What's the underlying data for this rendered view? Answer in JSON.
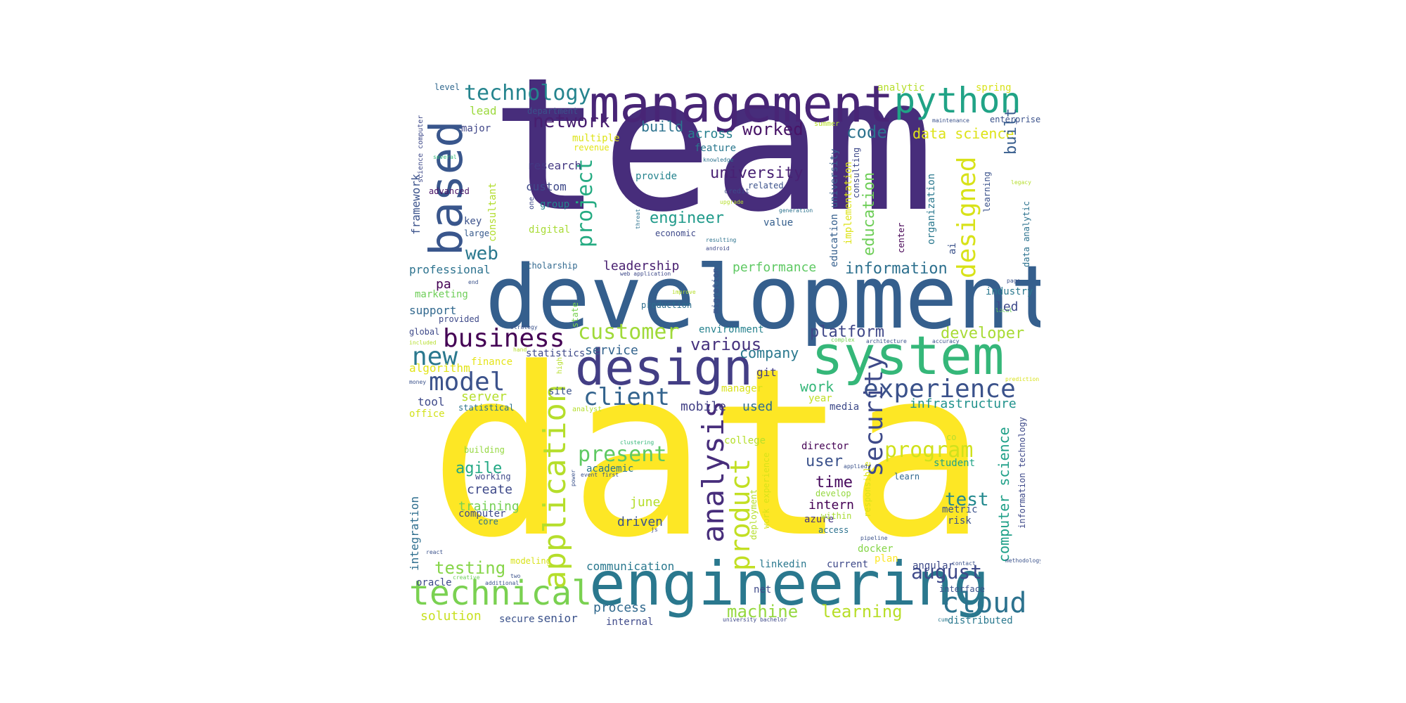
{
  "palette": {
    "p0": "#440154",
    "p1": "#482878",
    "p2": "#3e4989",
    "p3": "#31688e",
    "p4": "#26828e",
    "p5": "#1f9e89",
    "p6": "#35b779",
    "p7": "#6ece58",
    "p8": "#b5de2b",
    "p9": "#fde725"
  },
  "words": [
    {
      "text": "data",
      "color": "#fde725"
    },
    {
      "text": "team",
      "color": "#472d7b"
    },
    {
      "text": "development",
      "color": "#355f8d"
    },
    {
      "text": "engineering",
      "color": "#2a788e"
    },
    {
      "text": "management",
      "color": "#482576"
    },
    {
      "text": "system",
      "color": "#35b779"
    },
    {
      "text": "design",
      "color": "#433e85"
    },
    {
      "text": "based",
      "color": "#39568c"
    },
    {
      "text": "technical",
      "color": "#7ad151"
    },
    {
      "text": "python",
      "color": "#20a386"
    },
    {
      "text": "application",
      "color": "#b5de2b"
    },
    {
      "text": "experience",
      "color": "#3b528b"
    },
    {
      "text": "analysis",
      "color": "#472d7b"
    },
    {
      "text": "security",
      "color": "#3e4a89"
    },
    {
      "text": "product",
      "color": "#c2df23"
    },
    {
      "text": "designed",
      "color": "#d8e219"
    },
    {
      "text": "cloud",
      "color": "#2c728e"
    },
    {
      "text": "business",
      "color": "#440154"
    },
    {
      "text": "model",
      "color": "#3b528b"
    },
    {
      "text": "client",
      "color": "#33638d"
    },
    {
      "text": "technology",
      "color": "#25848e"
    },
    {
      "text": "new",
      "color": "#2a788e"
    },
    {
      "text": "customer",
      "color": "#a0da39"
    },
    {
      "text": "project",
      "color": "#25ab82"
    },
    {
      "text": "present",
      "color": "#5ec962"
    },
    {
      "text": "program",
      "color": "#d0e11c"
    },
    {
      "text": "august",
      "color": "#3e4989"
    },
    {
      "text": "machine",
      "color": "#95d840"
    },
    {
      "text": "learning",
      "color": "#b8de29"
    },
    {
      "text": "testing",
      "color": "#86d549"
    },
    {
      "text": "network",
      "color": "#481f70"
    },
    {
      "text": "test",
      "color": "#23898e"
    },
    {
      "text": "worked",
      "color": "#481467"
    },
    {
      "text": "web",
      "color": "#2a788e"
    },
    {
      "text": "various",
      "color": "#46327e"
    },
    {
      "text": "platform",
      "color": "#3f4788"
    },
    {
      "text": "information",
      "color": "#2d708e"
    },
    {
      "text": "developer",
      "color": "#a8db34"
    },
    {
      "text": "engineer",
      "color": "#1f9a8a"
    },
    {
      "text": "university",
      "color": "#482173"
    },
    {
      "text": "code",
      "color": "#2c728e"
    },
    {
      "text": "data science",
      "color": "#dde318"
    },
    {
      "text": "computer science",
      "color": "#1fa088"
    },
    {
      "text": "education",
      "color": "#6ece58"
    },
    {
      "text": "built",
      "color": "#365c8d"
    },
    {
      "text": "agile",
      "color": "#22a884"
    },
    {
      "text": "user",
      "color": "#3b528b"
    },
    {
      "text": "time",
      "color": "#46085c"
    },
    {
      "text": "company",
      "color": "#2a788e"
    },
    {
      "text": "service",
      "color": "#33638d"
    },
    {
      "text": "infrastructure",
      "color": "#20928c"
    },
    {
      "text": "work",
      "color": "#35b779"
    },
    {
      "text": "solution",
      "color": "#c8e020"
    },
    {
      "text": "process",
      "color": "#30698e"
    },
    {
      "text": "leadership",
      "color": "#481f70"
    },
    {
      "text": "performance",
      "color": "#5ec962"
    },
    {
      "text": "create",
      "color": "#3e4989"
    },
    {
      "text": "training",
      "color": "#75d054"
    },
    {
      "text": "mobile",
      "color": "#424086"
    },
    {
      "text": "used",
      "color": "#2f6c8e"
    },
    {
      "text": "driven",
      "color": "#3b528b"
    },
    {
      "text": "intern",
      "color": "#440154"
    },
    {
      "text": "june",
      "color": "#b5de2b"
    },
    {
      "text": "communication",
      "color": "#2a788e"
    },
    {
      "text": "senior",
      "color": "#3b528b"
    },
    {
      "text": "integration",
      "color": "#2e6e8e"
    },
    {
      "text": "build",
      "color": "#2c728e"
    },
    {
      "text": "across",
      "color": "#27808e"
    },
    {
      "text": "professional",
      "color": "#2c728e"
    },
    {
      "text": "support",
      "color": "#31688e"
    },
    {
      "text": "framework",
      "color": "#3b528b"
    },
    {
      "text": "lead",
      "color": "#9bd93c"
    },
    {
      "text": "research",
      "color": "#443983"
    },
    {
      "text": "custom",
      "color": "#3e4989"
    },
    {
      "text": "group",
      "color": "#25848e"
    },
    {
      "text": "pa",
      "color": "#440154"
    },
    {
      "text": "major",
      "color": "#404688"
    },
    {
      "text": "multiple",
      "color": "#dde318"
    },
    {
      "text": "key",
      "color": "#3b528b"
    },
    {
      "text": "large",
      "color": "#375a8c"
    },
    {
      "text": "marketing",
      "color": "#6ece58"
    },
    {
      "text": "server",
      "color": "#b5de2b"
    },
    {
      "text": "algorithm",
      "color": "#e2e418"
    },
    {
      "text": "tool",
      "color": "#3e4989"
    },
    {
      "text": "finance",
      "color": "#e5e419"
    },
    {
      "text": "office",
      "color": "#d2e21b"
    },
    {
      "text": "digital",
      "color": "#a8db34"
    },
    {
      "text": "consultant",
      "color": "#b2dd2d"
    },
    {
      "text": "value",
      "color": "#355f8d"
    },
    {
      "text": "feature",
      "color": "#2a788e"
    },
    {
      "text": "git",
      "color": "#433e85"
    },
    {
      "text": "manager",
      "color": "#d8e219"
    },
    {
      "text": "year",
      "color": "#c0df25"
    },
    {
      "text": "media",
      "color": "#3e4a89"
    },
    {
      "text": "college",
      "color": "#b5de2b"
    },
    {
      "text": "director",
      "color": "#440154"
    },
    {
      "text": "student",
      "color": "#20a386"
    },
    {
      "text": "azure",
      "color": "#46337f"
    },
    {
      "text": "docker",
      "color": "#86d549"
    },
    {
      "text": "access",
      "color": "#2c728e"
    },
    {
      "text": "linkedin",
      "color": "#2a788e"
    },
    {
      "text": "current",
      "color": "#3e4989"
    },
    {
      "text": "plan",
      "color": "#fde725"
    },
    {
      "text": "angular",
      "color": "#3e4a89"
    },
    {
      "text": "interface",
      "color": "#3b528b"
    },
    {
      "text": "distributed",
      "color": "#2a788e"
    },
    {
      "text": "risk",
      "color": "#3b528b"
    },
    {
      "text": "metric",
      "color": "#3b528b"
    },
    {
      "text": "within",
      "color": "#a8db34"
    },
    {
      "text": "develop",
      "color": "#95d840"
    },
    {
      "text": "learn",
      "color": "#31688e"
    },
    {
      "text": "statistics",
      "color": "#3e4989"
    },
    {
      "text": "site",
      "color": "#3b528b"
    },
    {
      "text": "statistical",
      "color": "#2c728e"
    },
    {
      "text": "environment",
      "color": "#26828e"
    },
    {
      "text": "provide",
      "color": "#25848e"
    },
    {
      "text": "economic",
      "color": "#3e4989"
    },
    {
      "text": "scholarship",
      "color": "#31688e"
    },
    {
      "text": "production",
      "color": "#2e6e8e"
    },
    {
      "text": "migration",
      "color": "#3b528b"
    },
    {
      "text": "state",
      "color": "#7ad151"
    },
    {
      "text": "analytic",
      "color": "#b5de2b"
    },
    {
      "text": "spring",
      "color": "#d8e219"
    },
    {
      "text": "enterprise",
      "color": "#3b528b"
    },
    {
      "text": "summer",
      "color": "#b5de2b"
    },
    {
      "text": "department",
      "color": "#3b528b"
    },
    {
      "text": "revenue",
      "color": "#e2e418"
    },
    {
      "text": "level",
      "color": "#31688e"
    },
    {
      "text": "advanced",
      "color": "#481467"
    },
    {
      "text": "science computer",
      "color": "#3e4989"
    },
    {
      "text": "several",
      "color": "#35b779"
    },
    {
      "text": "one",
      "color": "#3e4989"
    },
    {
      "text": "related",
      "color": "#3b528b"
    },
    {
      "text": "credit",
      "color": "#3e4989"
    },
    {
      "text": "upgrade",
      "color": "#b5de2b"
    },
    {
      "text": "generation",
      "color": "#2c728e"
    },
    {
      "text": "threat",
      "color": "#2c728e"
    },
    {
      "text": "knowledge",
      "color": "#2c728e"
    },
    {
      "text": "maintenance",
      "color": "#3b528b"
    },
    {
      "text": "education university",
      "color": "#355f8d"
    },
    {
      "text": "implementation",
      "color": "#dde318"
    },
    {
      "text": "consulting",
      "color": "#3e4989"
    },
    {
      "text": "center",
      "color": "#440154"
    },
    {
      "text": "organization",
      "color": "#2a788e"
    },
    {
      "text": "ai",
      "color": "#3b528b"
    },
    {
      "text": "learning",
      "color": "#3b528b"
    },
    {
      "text": "data analytic",
      "color": "#2c728e"
    },
    {
      "text": "legacy",
      "color": "#b5de2b"
    },
    {
      "text": "page",
      "color": "#3b528b"
    },
    {
      "text": "industry",
      "color": "#2a788e"
    },
    {
      "text": "local",
      "color": "#6ece58"
    },
    {
      "text": "led",
      "color": "#3e4989"
    },
    {
      "text": "accuracy",
      "color": "#3b528b"
    },
    {
      "text": "architecture",
      "color": "#3b528b"
    },
    {
      "text": "complex",
      "color": "#7ad151"
    },
    {
      "text": "resulting",
      "color": "#2c728e"
    },
    {
      "text": "android",
      "color": "#3e4989"
    },
    {
      "text": "improve",
      "color": "#b5de2b"
    },
    {
      "text": "end",
      "color": "#3b528b"
    },
    {
      "text": "provided",
      "color": "#3e4989"
    },
    {
      "text": "global",
      "color": "#3e4989"
    },
    {
      "text": "strategy",
      "color": "#3b528b"
    },
    {
      "text": "hand",
      "color": "#b5de2b"
    },
    {
      "text": "included",
      "color": "#b5de2b"
    },
    {
      "text": "money",
      "color": "#3b528b"
    },
    {
      "text": "high",
      "color": "#b5de2b"
    },
    {
      "text": "analyst",
      "color": "#b5de2b"
    },
    {
      "text": "clustering",
      "color": "#35b779"
    },
    {
      "text": "building",
      "color": "#95d840"
    },
    {
      "text": "working",
      "color": "#3e4989"
    },
    {
      "text": "academic",
      "color": "#2a788e"
    },
    {
      "text": "event",
      "color": "#3b528b"
    },
    {
      "text": "first",
      "color": "#3b528b"
    },
    {
      "text": "power",
      "color": "#3b528b"
    },
    {
      "text": "computer",
      "color": "#3e4989"
    },
    {
      "text": "core",
      "color": "#2c728e"
    },
    {
      "text": "deployment",
      "color": "#b5de2b"
    },
    {
      "text": "work experience",
      "color": "#d8e219"
    },
    {
      "text": "responsible",
      "color": "#d8e219"
    },
    {
      "text": "applied",
      "color": "#3b528b"
    },
    {
      "text": "co",
      "color": "#b5de2b"
    },
    {
      "text": "information technology",
      "color": "#3e4989"
    },
    {
      "text": "pipeline",
      "color": "#3b528b"
    },
    {
      "text": "js",
      "color": "#3e4989"
    },
    {
      "text": "react",
      "color": "#3b528b"
    },
    {
      "text": "modeling",
      "color": "#d8e219"
    },
    {
      "text": "oracle",
      "color": "#3e4989"
    },
    {
      "text": "two",
      "color": "#3b528b"
    },
    {
      "text": "creative",
      "color": "#6ece58"
    },
    {
      "text": "additional",
      "color": "#3b528b"
    },
    {
      "text": "net",
      "color": "#3e4989"
    },
    {
      "text": "contact",
      "color": "#3b528b"
    },
    {
      "text": "methodology",
      "color": "#3b528b"
    },
    {
      "text": "cum",
      "color": "#2a788e"
    },
    {
      "text": "university bachelor",
      "color": "#3e4989"
    },
    {
      "text": "internal",
      "color": "#3e4989"
    },
    {
      "text": "secure",
      "color": "#3b528b"
    },
    {
      "text": "web application",
      "color": "#3e4989"
    },
    {
      "text": "prediction",
      "color": "#d8e219"
    }
  ]
}
